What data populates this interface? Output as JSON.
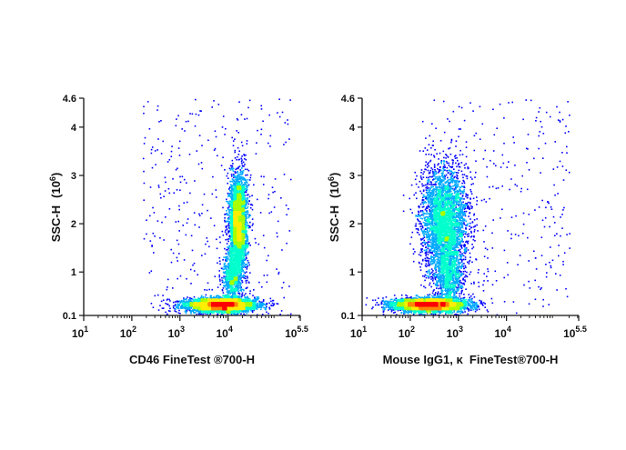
{
  "chart_data": [
    {
      "type": "scatter",
      "plot_style": "flow cytometry density pseudocolor dot plot",
      "xlabel": "CD46 FineTest ®700-H",
      "ylabel": "SSC-H",
      "ylabel_unit": "(10",
      "ylabel_unit_exp": "6",
      "ylabel_unit_close": ")",
      "x_scale": "log",
      "xlim": [
        10,
        316228
      ],
      "ylim": [
        0.1,
        4.6
      ],
      "x_ticks": [
        {
          "base": "10",
          "exp": "1",
          "value": 10
        },
        {
          "base": "10",
          "exp": "2",
          "value": 100
        },
        {
          "base": "10",
          "exp": "3",
          "value": 1000
        },
        {
          "base": "10",
          "exp": "4",
          "value": 10000
        },
        {
          "base": "10",
          "exp": "5.5",
          "value": 316228
        }
      ],
      "y_ticks": [
        {
          "label": "0.1",
          "value": 0.1
        },
        {
          "label": "1",
          "value": 1
        },
        {
          "label": "2",
          "value": 2
        },
        {
          "label": "3",
          "value": 3
        },
        {
          "label": "4",
          "value": 4
        },
        {
          "label": "4.6",
          "value": 4.6
        }
      ],
      "populations": [
        {
          "center_x": 7000,
          "center_y": 0.33,
          "spread_log_x": 0.36,
          "spread_y": 0.07,
          "weight": 4200,
          "shape": "horizontal ellipse"
        },
        {
          "center_x": 16000,
          "center_y": 2.05,
          "spread_log_x": 0.09,
          "spread_y": 0.5,
          "weight": 3300,
          "shape": "vertical ellipse"
        },
        {
          "center_x": 12000,
          "center_y": 0.9,
          "spread_log_x": 0.1,
          "spread_y": 0.3,
          "weight": 900,
          "shape": "bridge"
        }
      ],
      "grid": false,
      "legend": "none"
    },
    {
      "type": "scatter",
      "plot_style": "flow cytometry density pseudocolor dot plot",
      "xlabel": "Mouse IgG1, κ  FineTest®700-H",
      "ylabel": "SSC-H",
      "ylabel_unit": "(10",
      "ylabel_unit_exp": "6",
      "ylabel_unit_close": ")",
      "x_scale": "log",
      "xlim": [
        10,
        316228
      ],
      "ylim": [
        0.1,
        4.6
      ],
      "x_ticks": [
        {
          "base": "10",
          "exp": "1",
          "value": 10
        },
        {
          "base": "10",
          "exp": "2",
          "value": 100
        },
        {
          "base": "10",
          "exp": "3",
          "value": 1000
        },
        {
          "base": "10",
          "exp": "4",
          "value": 10000
        },
        {
          "base": "10",
          "exp": "5.5",
          "value": 316228
        }
      ],
      "y_ticks": [
        {
          "label": "0.1",
          "value": 0.1
        },
        {
          "label": "1",
          "value": 1
        },
        {
          "label": "2",
          "value": 2
        },
        {
          "label": "3",
          "value": 3
        },
        {
          "label": "4",
          "value": 4
        },
        {
          "label": "4.6",
          "value": 4.6
        }
      ],
      "populations": [
        {
          "center_x": 250,
          "center_y": 0.33,
          "spread_log_x": 0.38,
          "spread_y": 0.07,
          "weight": 4200,
          "shape": "horizontal ellipse"
        },
        {
          "center_x": 500,
          "center_y": 2.05,
          "spread_log_x": 0.24,
          "spread_y": 0.55,
          "weight": 3600,
          "shape": "large oval"
        },
        {
          "center_x": 600,
          "center_y": 0.9,
          "spread_log_x": 0.15,
          "spread_y": 0.3,
          "weight": 800,
          "shape": "bridge"
        }
      ],
      "grid": false,
      "legend": "none"
    }
  ],
  "colors": {
    "density_scale": [
      "#0000ff",
      "#00aaff",
      "#00ffcc",
      "#aaff00",
      "#ffee00",
      "#ff8800",
      "#ff0000"
    ],
    "axis": "#111111",
    "background": "#ffffff"
  }
}
